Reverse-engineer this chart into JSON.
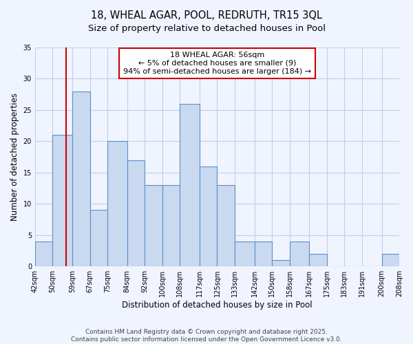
{
  "title": "18, WHEAL AGAR, POOL, REDRUTH, TR15 3QL",
  "subtitle": "Size of property relative to detached houses in Pool",
  "xlabel": "Distribution of detached houses by size in Pool",
  "ylabel": "Number of detached properties",
  "bins": [
    42,
    50,
    59,
    67,
    75,
    84,
    92,
    100,
    108,
    117,
    125,
    133,
    142,
    150,
    158,
    167,
    175,
    183,
    191,
    200,
    208
  ],
  "counts": [
    4,
    21,
    28,
    9,
    20,
    17,
    13,
    13,
    26,
    16,
    13,
    4,
    4,
    1,
    4,
    2,
    0,
    0,
    0,
    2
  ],
  "bar_color": "#c9d9f0",
  "bar_edge_color": "#5b8fc9",
  "vline_x": 56,
  "vline_color": "#cc0000",
  "annotation_line1": "18 WHEAL AGAR: 56sqm",
  "annotation_line2": "← 5% of detached houses are smaller (9)",
  "annotation_line3": "94% of semi-detached houses are larger (184) →",
  "annotation_box_color": "white",
  "annotation_box_edge_color": "#cc0000",
  "ylim": [
    0,
    35
  ],
  "yticks": [
    0,
    5,
    10,
    15,
    20,
    25,
    30,
    35
  ],
  "tick_labels": [
    "42sqm",
    "50sqm",
    "59sqm",
    "67sqm",
    "75sqm",
    "84sqm",
    "92sqm",
    "100sqm",
    "108sqm",
    "117sqm",
    "125sqm",
    "133sqm",
    "142sqm",
    "150sqm",
    "158sqm",
    "167sqm",
    "175sqm",
    "183sqm",
    "191sqm",
    "200sqm",
    "208sqm"
  ],
  "footer_line1": "Contains HM Land Registry data © Crown copyright and database right 2025.",
  "footer_line2": "Contains public sector information licensed under the Open Government Licence v3.0.",
  "bg_color": "#f0f4ff",
  "grid_color": "#c0cfe8",
  "title_fontsize": 10.5,
  "subtitle_fontsize": 9.5,
  "axis_label_fontsize": 8.5,
  "tick_fontsize": 7,
  "annotation_fontsize": 8,
  "footer_fontsize": 6.5
}
